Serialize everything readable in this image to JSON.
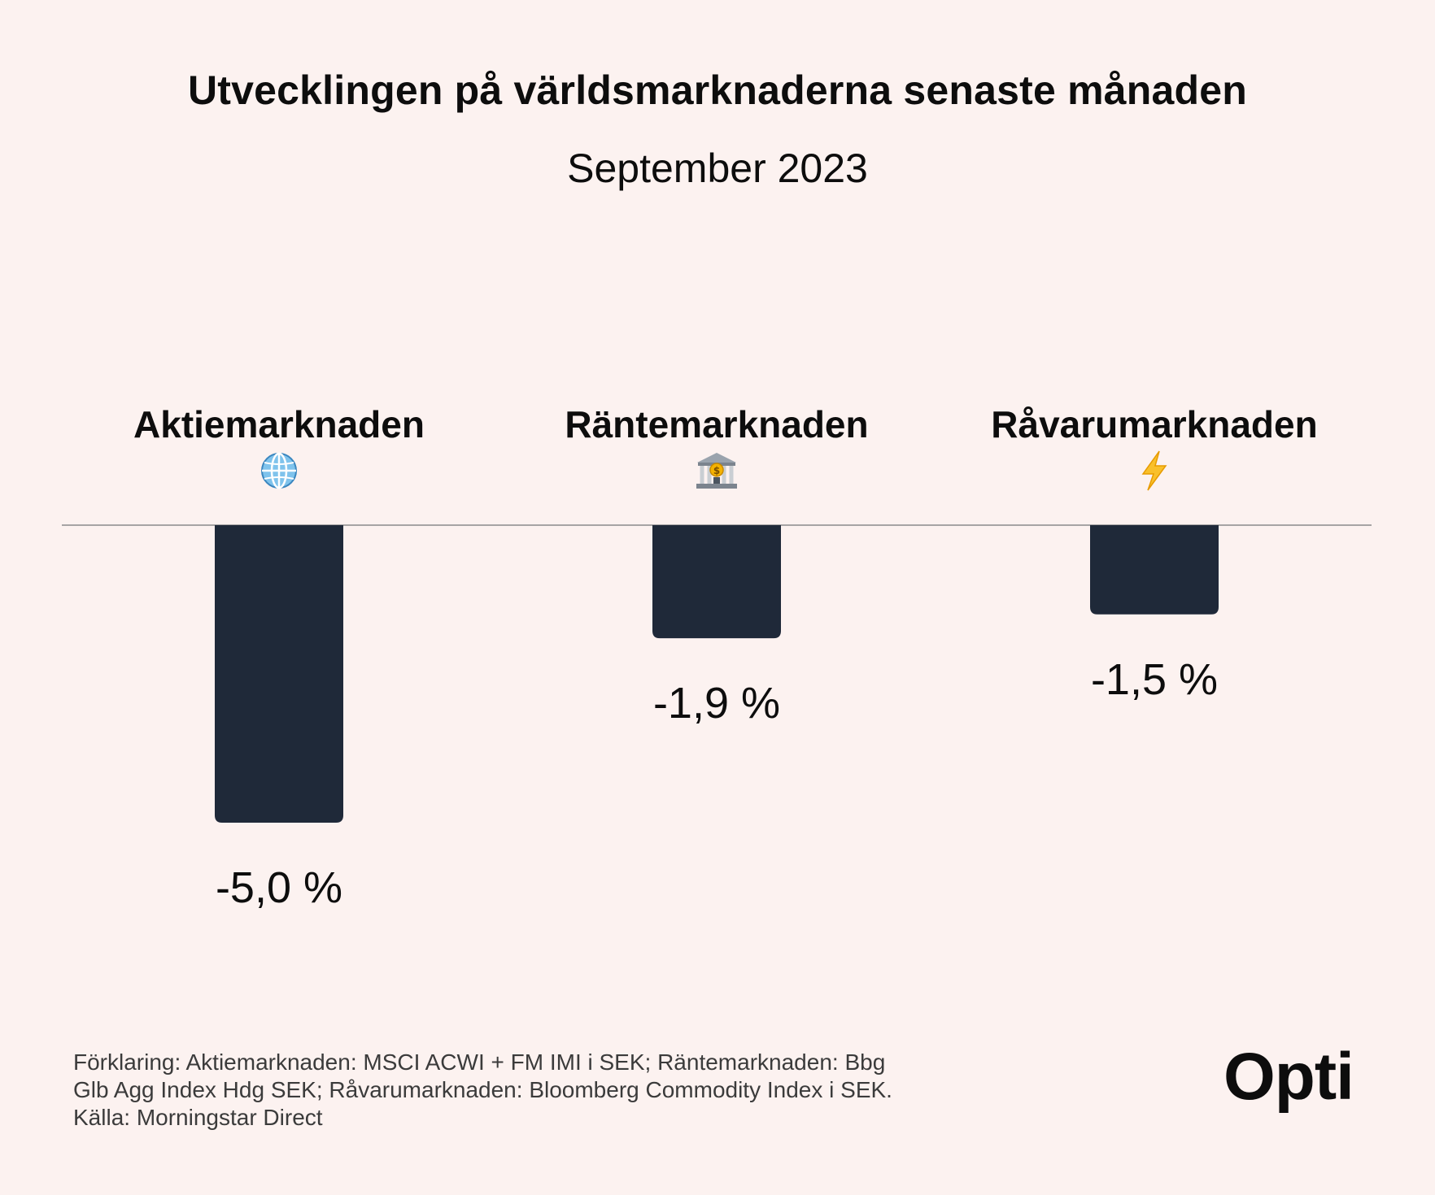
{
  "title": "Utvecklingen på världsmarknaderna senaste månaden",
  "subtitle": "September 2023",
  "chart_data": {
    "type": "bar",
    "categories": [
      "Aktiemarknaden",
      "Räntemarknaden",
      "Råvarumarknaden"
    ],
    "category_icons": [
      "globe-icon",
      "bank-icon",
      "lightning-icon"
    ],
    "values": [
      -5.0,
      -1.9,
      -1.5
    ],
    "value_labels": [
      "-5,0 %",
      "-1,9 %",
      "-1,5 %"
    ],
    "ylim": [
      -5.0,
      0
    ],
    "grid": false,
    "bar_color": "#1f2939",
    "baseline_color": "#8a8a8a"
  },
  "footnote": {
    "lines": [
      "Förklaring: Aktiemarknaden: MSCI ACWI + FM IMI i SEK; Räntemarknaden: Bbg",
      "Glb Agg Index Hdg SEK; Råvarumarknaden: Bloomberg Commodity Index i SEK.",
      "Källa: Morningstar Direct"
    ]
  },
  "logo": "Opti"
}
